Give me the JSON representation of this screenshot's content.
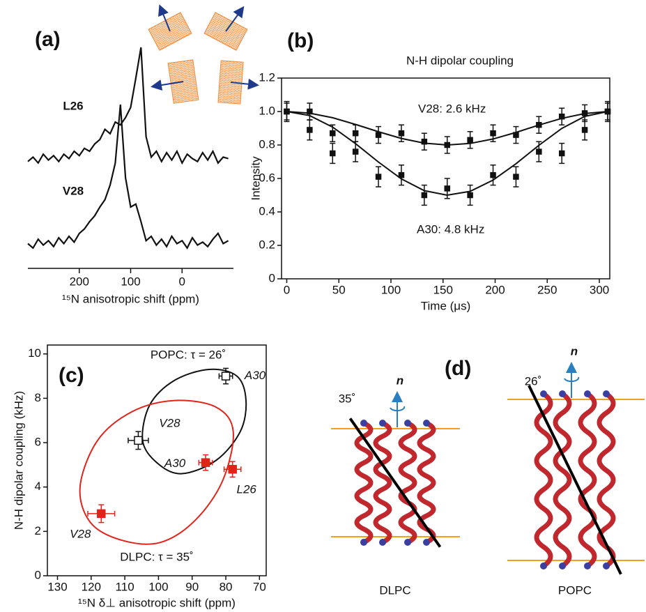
{
  "chart_data": [
    {
      "type": "line",
      "panel_label": "(a)",
      "xlabel": "¹⁵N anisotropic shift (ppm)",
      "xlim": [
        300,
        -100
      ],
      "xticks": [
        200,
        100,
        0
      ],
      "ylim": [
        0,
        1
      ],
      "series": [
        {
          "name": "L26",
          "color": "#111111",
          "x": [
            300,
            290,
            280,
            270,
            260,
            250,
            240,
            230,
            220,
            210,
            200,
            190,
            180,
            170,
            160,
            150,
            140,
            130,
            120,
            110,
            100,
            90,
            80,
            70,
            60,
            50,
            40,
            30,
            20,
            10,
            0,
            -10,
            -20,
            -30,
            -40,
            -50,
            -60,
            -70,
            -80,
            -90
          ],
          "values": [
            0.03,
            0.06,
            0.02,
            0.08,
            0.04,
            0.07,
            0.03,
            0.08,
            0.05,
            0.1,
            0.07,
            0.12,
            0.1,
            0.15,
            0.18,
            0.25,
            0.22,
            0.3,
            0.28,
            0.33,
            0.4,
            0.6,
            0.81,
            0.2,
            0.06,
            0.1,
            0.03,
            0.09,
            0.04,
            0.1,
            0.02,
            0.08,
            0.05,
            0.03,
            0.09,
            0.04,
            0.1,
            0.02,
            0.06,
            0.05
          ]
        },
        {
          "name": "V28",
          "color": "#111111",
          "x": [
            300,
            290,
            280,
            270,
            260,
            250,
            240,
            230,
            220,
            210,
            200,
            190,
            180,
            170,
            160,
            150,
            140,
            130,
            120,
            110,
            100,
            90,
            80,
            70,
            60,
            50,
            40,
            30,
            20,
            10,
            0,
            -10,
            -20,
            -30,
            -40,
            -50,
            -60,
            -70,
            -80,
            -90
          ],
          "values": [
            0.05,
            0.02,
            0.08,
            0.04,
            0.07,
            0.03,
            0.09,
            0.05,
            0.1,
            0.06,
            0.12,
            0.15,
            0.2,
            0.24,
            0.3,
            0.35,
            0.45,
            0.6,
            1.0,
            0.5,
            0.3,
            0.32,
            0.2,
            0.07,
            0.1,
            0.04,
            0.08,
            0.03,
            0.1,
            0.05,
            0.07,
            0.02,
            0.09,
            0.04,
            0.06,
            0.03,
            0.08,
            0.12,
            0.05,
            0.07
          ]
        }
      ]
    },
    {
      "type": "scatter",
      "panel_label": "(b)",
      "title": "N-H dipolar coupling",
      "xlabel": "Time (μs)",
      "ylabel": "Intensity",
      "xlim": [
        -5,
        310
      ],
      "xticks": [
        0,
        50,
        100,
        150,
        200,
        250,
        300
      ],
      "ylim": [
        0,
        1.2
      ],
      "yticks": [
        0,
        0.2,
        0.4,
        0.6,
        0.8,
        {
          "value": 1,
          "label": "1.0"
        },
        1.2
      ],
      "series": [
        {
          "name": "V28: 2.6 kHz",
          "color": "#111111",
          "x": [
            0,
            22,
            44,
            66,
            88,
            110,
            132,
            154,
            176,
            198,
            220,
            242,
            264,
            286,
            308
          ],
          "values": [
            1.0,
            1.0,
            0.87,
            0.87,
            0.86,
            0.87,
            0.82,
            0.8,
            0.83,
            0.87,
            0.86,
            0.92,
            0.97,
            0.99,
            1.0
          ],
          "errors": [
            0.05,
            0.05,
            0.05,
            0.05,
            0.05,
            0.05,
            0.05,
            0.05,
            0.05,
            0.05,
            0.05,
            0.05,
            0.05,
            0.05,
            0.05
          ],
          "fit": [
            1,
            0.99,
            0.963,
            0.923,
            0.879,
            0.839,
            0.811,
            0.8,
            0.809,
            0.836,
            0.875,
            0.919,
            0.959,
            0.988,
            1.0
          ]
        },
        {
          "name": "A30: 4.8 kHz",
          "color": "#111111",
          "x": [
            0,
            22,
            44,
            66,
            88,
            110,
            132,
            154,
            176,
            198,
            220,
            242,
            264,
            286,
            308
          ],
          "values": [
            1.0,
            0.89,
            0.75,
            0.76,
            0.61,
            0.62,
            0.5,
            0.54,
            0.5,
            0.62,
            0.61,
            0.76,
            0.75,
            0.89,
            1.0
          ],
          "errors": [
            0.06,
            0.06,
            0.06,
            0.06,
            0.06,
            0.06,
            0.06,
            0.06,
            0.06,
            0.06,
            0.06,
            0.06,
            0.06,
            0.06,
            0.06
          ],
          "fit": [
            1,
            0.976,
            0.907,
            0.808,
            0.698,
            0.597,
            0.527,
            0.5,
            0.523,
            0.59,
            0.688,
            0.798,
            0.899,
            0.971,
            1.0
          ]
        }
      ]
    },
    {
      "type": "scatter",
      "panel_label": "(c)",
      "xlabel": "¹⁵N δ⊥ anisotropic shift (ppm)",
      "ylabel": "N-H dipolar coupling (kHz)",
      "xlim": [
        133,
        68
      ],
      "xticks": [
        130,
        120,
        110,
        100,
        90,
        80,
        70
      ],
      "ylim": [
        0,
        10.4
      ],
      "yticks": [
        0,
        2,
        4,
        6,
        8,
        10
      ],
      "series": [
        {
          "name": "POPC: τ = 26˚",
          "color": "#111111",
          "filled": false,
          "labels": [
            "A30",
            "V28"
          ],
          "x": [
            80,
            106
          ],
          "values": [
            9.0,
            6.1
          ],
          "xerr": [
            2,
            3
          ],
          "errors": [
            0.35,
            0.4
          ],
          "ellipse_x": [
            104.7,
            102.6,
            95.3,
            85.0,
            76.7,
            74.0,
            75.7,
            82.9,
            93.3,
            100.5
          ],
          "ellipse_y": [
            6.1,
            7.7,
            8.8,
            9.3,
            9.0,
            7.9,
            6.5,
            5.2,
            4.6,
            5.1
          ]
        },
        {
          "name": "DLPC: τ = 35˚",
          "color": "#e2231a",
          "filled": true,
          "labels": [
            "A30",
            "L26",
            "V28"
          ],
          "x": [
            86,
            78,
            117
          ],
          "values": [
            5.1,
            4.8,
            2.8
          ],
          "xerr": [
            2,
            2.5,
            4
          ],
          "errors": [
            0.35,
            0.35,
            0.4
          ],
          "ellipse_x": [
            123.3,
            118.1,
            107.8,
            95.3,
            82.9,
            77.8,
            80.9,
            89.1,
            99.5,
            110.9,
            120.2
          ],
          "ellipse_y": [
            4.0,
            6.1,
            7.4,
            7.9,
            7.6,
            6.5,
            4.3,
            2.5,
            1.5,
            1.6,
            2.4
          ]
        }
      ]
    }
  ],
  "panel_d": {
    "label": "(d)",
    "structures": [
      {
        "name": "DLPC",
        "axis": "n",
        "tilt": {
          "value": 35,
          "label": "35˚"
        }
      },
      {
        "name": "POPC",
        "axis": "n",
        "tilt": {
          "value": 26,
          "label": "26˚"
        }
      }
    ]
  }
}
